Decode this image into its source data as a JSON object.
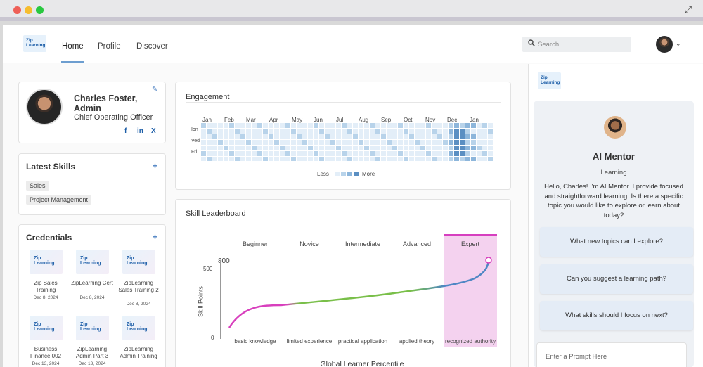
{
  "header": {
    "logo_top": "Zip",
    "logo_bottom": "Learning",
    "nav": [
      "Home",
      "Profile",
      "Discover"
    ],
    "search_placeholder": "Search"
  },
  "profile": {
    "name": "Charles Foster, Admin",
    "role": "Chief Operating Officer",
    "social": [
      "f",
      "in",
      "X"
    ]
  },
  "skills": {
    "title": "Latest Skills",
    "items": [
      "Sales",
      "Project Management"
    ]
  },
  "credentials": {
    "title": "Credentials",
    "items": [
      {
        "name": "Zip Sales Training",
        "date": "Dec 8, 2024"
      },
      {
        "name": "ZipLearning Cert",
        "date": "Dec 8, 2024"
      },
      {
        "name": "ZipLearning Sales Training 2",
        "date": "Dec 8, 2024"
      },
      {
        "name": "Business Finance 002",
        "date": "Dec 13, 2024"
      },
      {
        "name": "ZipLearning Admin Part 3",
        "date": "Dec 13, 2024"
      },
      {
        "name": "ZipLearning Admin Training",
        "date": ""
      }
    ]
  },
  "engagement": {
    "title": "Engagement",
    "months": [
      "Jan",
      "Feb",
      "Mar",
      "Apr",
      "May",
      "Jun",
      "Jul",
      "Aug",
      "Sep",
      "Oct",
      "Nov",
      "Dec",
      "Jan"
    ],
    "days": [
      "Ion",
      "Ved",
      "Fri"
    ],
    "legend_less": "Less",
    "legend_more": "More",
    "colors": [
      "#e3eef8",
      "#b8d3ea",
      "#8db6db",
      "#5b8fc2"
    ]
  },
  "leaderboard": {
    "title": "Skill Leaderboard",
    "levels": [
      "Beginner",
      "Novice",
      "Intermediate",
      "Advanced",
      "Expert"
    ],
    "x_labels": [
      "basic knowledge",
      "limited experience",
      "practical application",
      "applied theory",
      "recognized authority"
    ],
    "y_label": "Skill Points",
    "x_axis_title": "Global Learner Percentile",
    "y_top_value": "800",
    "y_ticks": [
      "500",
      "0"
    ],
    "highlight_color": "#f4d2ef"
  },
  "mentor": {
    "logo_top": "Zip",
    "logo_bottom": "Learning",
    "title": "AI Mentor",
    "subtitle": "Learning",
    "message": "Hello, Charles! I'm AI Mentor. I provide focused and straightforward learning. Is there a specific topic you would like to explore or learn about today?",
    "suggestions": [
      "What new topics can I explore?",
      "Can you suggest a learning path?",
      "What skills should I focus on next?"
    ],
    "prompt_placeholder": "Enter a Prompt Here"
  }
}
